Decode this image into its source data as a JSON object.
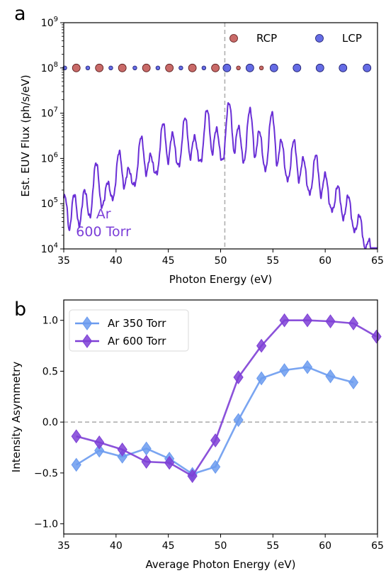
{
  "chart_data": [
    {
      "panel_letter": "a",
      "type": "line",
      "xlabel": "Photon Energy (eV)",
      "ylabel": "Est. EUV Flux (ph/s/eV)",
      "xlim": [
        35,
        65
      ],
      "ylim": [
        10000,
        1000000000
      ],
      "yscale": "log",
      "x_ticks": [
        "35",
        "40",
        "45",
        "50",
        "55",
        "60",
        "65"
      ],
      "y_ticks": [
        {
          "value": 10000,
          "base": "10",
          "exp": "4"
        },
        {
          "value": 100000,
          "base": "10",
          "exp": "5"
        },
        {
          "value": 1000000,
          "base": "10",
          "exp": "6"
        },
        {
          "value": 10000000,
          "base": "10",
          "exp": "7"
        },
        {
          "value": 100000000,
          "base": "10",
          "exp": "8"
        },
        {
          "value": 1000000000,
          "base": "10",
          "exp": "9"
        }
      ],
      "grid": false,
      "legend_position": "top-right",
      "spectrum_color": "#6a2fd6",
      "annotation": {
        "line1": "Ar",
        "line2": "600 Torr",
        "color": "#7b3ed8"
      },
      "vline": {
        "x": 50.4,
        "style": "dashed",
        "color": "#b0b0b0"
      },
      "harmonic_peaks": [
        {
          "x": 35.1,
          "y": 150000
        },
        {
          "x": 36.0,
          "y": 160000
        },
        {
          "x": 37.0,
          "y": 200000
        },
        {
          "x": 38.1,
          "y": 800000
        },
        {
          "x": 39.2,
          "y": 300000
        },
        {
          "x": 40.3,
          "y": 1400000
        },
        {
          "x": 41.2,
          "y": 600000
        },
        {
          "x": 42.4,
          "y": 3000000
        },
        {
          "x": 43.3,
          "y": 1200000
        },
        {
          "x": 44.5,
          "y": 6000000
        },
        {
          "x": 45.4,
          "y": 3500000
        },
        {
          "x": 46.6,
          "y": 8000000
        },
        {
          "x": 47.5,
          "y": 3000000
        },
        {
          "x": 48.7,
          "y": 12000000
        },
        {
          "x": 49.6,
          "y": 4500000
        },
        {
          "x": 50.8,
          "y": 17000000
        },
        {
          "x": 51.7,
          "y": 5000000
        },
        {
          "x": 52.8,
          "y": 12000000
        },
        {
          "x": 53.7,
          "y": 4000000
        },
        {
          "x": 54.9,
          "y": 10000000
        },
        {
          "x": 55.8,
          "y": 2500000
        },
        {
          "x": 57.0,
          "y": 2500000
        },
        {
          "x": 57.9,
          "y": 1000000
        },
        {
          "x": 59.1,
          "y": 1200000
        },
        {
          "x": 60.0,
          "y": 450000
        },
        {
          "x": 61.2,
          "y": 250000
        },
        {
          "x": 62.2,
          "y": 150000
        },
        {
          "x": 63.3,
          "y": 60000
        },
        {
          "x": 64.2,
          "y": 35000
        }
      ],
      "series": [
        {
          "name": "RCP",
          "type": "scatter",
          "color": "#c0504d",
          "points": [
            {
              "x": 36.2,
              "y": 100000000,
              "size": "large"
            },
            {
              "x": 38.4,
              "y": 100000000,
              "size": "large"
            },
            {
              "x": 40.6,
              "y": 100000000,
              "size": "large"
            },
            {
              "x": 42.9,
              "y": 100000000,
              "size": "large"
            },
            {
              "x": 45.1,
              "y": 100000000,
              "size": "large"
            },
            {
              "x": 47.3,
              "y": 100000000,
              "size": "large"
            },
            {
              "x": 49.5,
              "y": 100000000,
              "size": "large"
            },
            {
              "x": 51.7,
              "y": 100000000,
              "size": "small"
            },
            {
              "x": 53.9,
              "y": 100000000,
              "size": "small"
            }
          ]
        },
        {
          "name": "LCP",
          "type": "scatter",
          "color": "#4a52e0",
          "points": [
            {
              "x": 35.1,
              "y": 100000000,
              "size": "small"
            },
            {
              "x": 37.3,
              "y": 100000000,
              "size": "small"
            },
            {
              "x": 39.5,
              "y": 100000000,
              "size": "small"
            },
            {
              "x": 41.8,
              "y": 100000000,
              "size": "small"
            },
            {
              "x": 44.0,
              "y": 100000000,
              "size": "small"
            },
            {
              "x": 46.2,
              "y": 100000000,
              "size": "small"
            },
            {
              "x": 48.4,
              "y": 100000000,
              "size": "small"
            },
            {
              "x": 50.6,
              "y": 100000000,
              "size": "large"
            },
            {
              "x": 52.8,
              "y": 100000000,
              "size": "large"
            },
            {
              "x": 55.1,
              "y": 100000000,
              "size": "large"
            },
            {
              "x": 57.3,
              "y": 100000000,
              "size": "large"
            },
            {
              "x": 59.5,
              "y": 100000000,
              "size": "large"
            },
            {
              "x": 61.7,
              "y": 100000000,
              "size": "large"
            },
            {
              "x": 64.0,
              "y": 100000000,
              "size": "large"
            }
          ]
        }
      ]
    },
    {
      "panel_letter": "b",
      "type": "line",
      "xlabel": "Average Photon Energy (eV)",
      "ylabel": "Intensity Asymmetry",
      "xlim": [
        35,
        65
      ],
      "ylim": [
        -1.1,
        1.2
      ],
      "x_ticks": [
        "35",
        "40",
        "45",
        "50",
        "55",
        "60",
        "65"
      ],
      "y_ticks": [
        {
          "value": 1.0,
          "label": "1.0"
        },
        {
          "value": 0.5,
          "label": "0.5"
        },
        {
          "value": 0.0,
          "label": "0.0"
        },
        {
          "value": -0.5,
          "label": "−0.5"
        },
        {
          "value": -1.0,
          "label": "−1.0"
        }
      ],
      "grid": false,
      "legend_position": "top-left",
      "hline": {
        "y": 0,
        "style": "dashed",
        "color": "#b0b0b0"
      },
      "series": [
        {
          "name": "Ar 350 Torr",
          "color": "#6b9bef",
          "marker": "diamond",
          "points": [
            {
              "x": 36.2,
              "y": -0.42
            },
            {
              "x": 38.4,
              "y": -0.28
            },
            {
              "x": 40.6,
              "y": -0.34
            },
            {
              "x": 42.9,
              "y": -0.26
            },
            {
              "x": 45.1,
              "y": -0.36
            },
            {
              "x": 47.3,
              "y": -0.51
            },
            {
              "x": 49.5,
              "y": -0.44
            },
            {
              "x": 51.7,
              "y": 0.02
            },
            {
              "x": 53.9,
              "y": 0.43
            },
            {
              "x": 56.1,
              "y": 0.51
            },
            {
              "x": 58.3,
              "y": 0.54
            },
            {
              "x": 60.5,
              "y": 0.45
            },
            {
              "x": 62.7,
              "y": 0.39
            }
          ]
        },
        {
          "name": "Ar 600 Torr",
          "color": "#7e3fd6",
          "marker": "diamond",
          "points": [
            {
              "x": 36.2,
              "y": -0.14
            },
            {
              "x": 38.4,
              "y": -0.2
            },
            {
              "x": 40.6,
              "y": -0.27
            },
            {
              "x": 42.9,
              "y": -0.39
            },
            {
              "x": 45.1,
              "y": -0.4
            },
            {
              "x": 47.3,
              "y": -0.53
            },
            {
              "x": 49.5,
              "y": -0.18
            },
            {
              "x": 51.7,
              "y": 0.44
            },
            {
              "x": 53.9,
              "y": 0.75
            },
            {
              "x": 56.1,
              "y": 1.0
            },
            {
              "x": 58.3,
              "y": 1.0
            },
            {
              "x": 60.5,
              "y": 0.99
            },
            {
              "x": 62.7,
              "y": 0.97
            },
            {
              "x": 64.9,
              "y": 0.84
            }
          ]
        }
      ]
    }
  ]
}
